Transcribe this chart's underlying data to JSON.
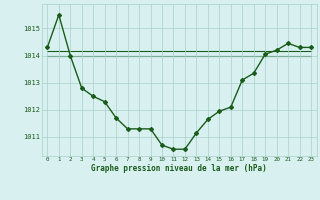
{
  "x": [
    0,
    1,
    2,
    3,
    4,
    5,
    6,
    7,
    8,
    9,
    10,
    11,
    12,
    13,
    14,
    15,
    16,
    17,
    18,
    19,
    20,
    21,
    22,
    23
  ],
  "y_main": [
    1014.3,
    1015.5,
    1014.0,
    1012.8,
    1012.5,
    1012.3,
    1011.7,
    1011.3,
    1011.3,
    1011.3,
    1010.7,
    1010.55,
    1010.55,
    1011.15,
    1011.65,
    1011.95,
    1012.1,
    1013.1,
    1013.35,
    1014.05,
    1014.2,
    1014.45,
    1014.3,
    1014.3
  ],
  "y_flat1": [
    1014.15,
    1014.15,
    1014.15,
    1014.15,
    1014.15,
    1014.15,
    1014.15,
    1014.15,
    1014.15,
    1014.15,
    1014.15,
    1014.15,
    1014.15,
    1014.15,
    1014.15,
    1014.15,
    1014.15,
    1014.15,
    1014.15,
    1014.15,
    1014.15,
    1014.15,
    1014.15,
    1014.15
  ],
  "y_flat2": [
    1014.0,
    1014.0,
    1014.0,
    1014.0,
    1014.0,
    1014.0,
    1014.0,
    1014.0,
    1014.0,
    1014.0,
    1014.0,
    1014.0,
    1014.0,
    1014.0,
    1014.0,
    1014.0,
    1014.0,
    1014.0,
    1014.0,
    1014.0,
    1014.0,
    1014.0,
    1014.0,
    1014.0
  ],
  "line_color": "#1a5c1a",
  "bg_color": "#d8f0f0",
  "grid_color": "#a8d0cc",
  "ylim": [
    1010.3,
    1015.9
  ],
  "yticks": [
    1011,
    1012,
    1013,
    1014,
    1015
  ],
  "xlabel": "Graphe pression niveau de la mer (hPa)",
  "marker": "D",
  "marker_size": 2.0,
  "line_width": 1.0
}
